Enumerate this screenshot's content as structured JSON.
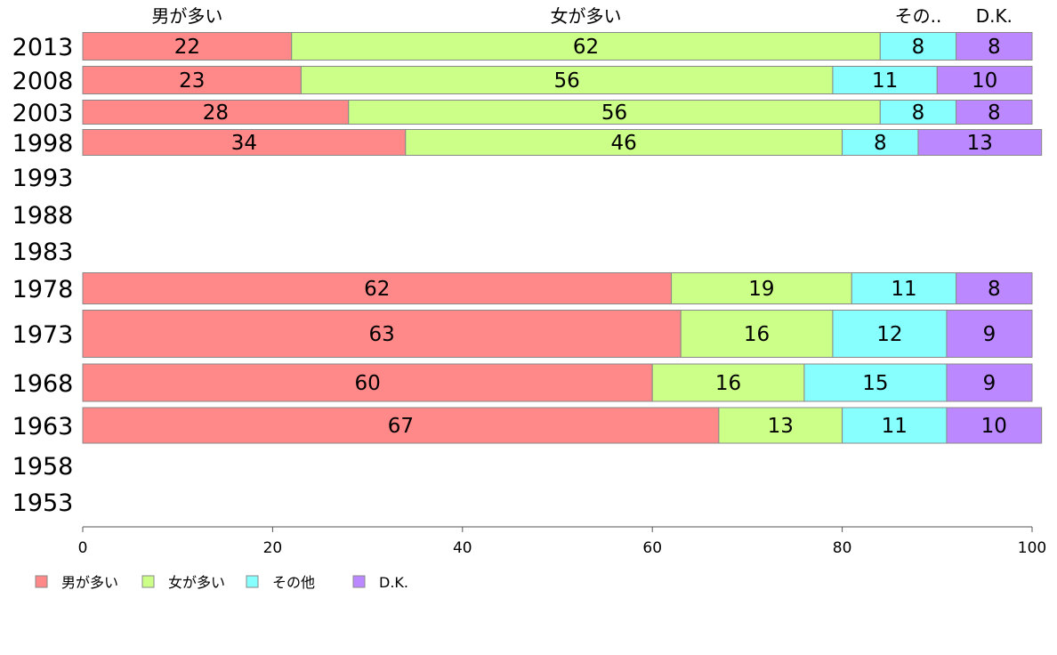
{
  "chart_data": {
    "type": "bar",
    "orientation": "horizontal",
    "stacked": true,
    "title": "",
    "xlabel": "",
    "ylabel": "",
    "xlim": [
      0,
      100
    ],
    "x_ticks": [
      0,
      20,
      40,
      60,
      80,
      100
    ],
    "grid": false,
    "legend_position": "bottom-left",
    "categories": [
      "2013",
      "2008",
      "2003",
      "1998",
      "1993",
      "1988",
      "1983",
      "1978",
      "1973",
      "1968",
      "1963",
      "1958",
      "1953"
    ],
    "top_labels": [
      "男が多い",
      "女が多い",
      "その..",
      "D.K."
    ],
    "series": [
      {
        "name": "男が多い",
        "color": "#ff8888",
        "values": [
          22,
          23,
          28,
          34,
          null,
          null,
          null,
          62,
          63,
          60,
          67,
          null,
          null
        ]
      },
      {
        "name": "女が多い",
        "color": "#ccff88",
        "values": [
          62,
          56,
          56,
          46,
          null,
          null,
          null,
          19,
          16,
          16,
          13,
          null,
          null
        ]
      },
      {
        "name": "その他",
        "color": "#88ffff",
        "values": [
          8,
          11,
          8,
          8,
          null,
          null,
          null,
          11,
          12,
          15,
          11,
          null,
          null
        ]
      },
      {
        "name": "D.K.",
        "color": "#bb88ff",
        "values": [
          8,
          10,
          8,
          13,
          null,
          null,
          null,
          8,
          9,
          9,
          10,
          null,
          null
        ]
      }
    ]
  }
}
